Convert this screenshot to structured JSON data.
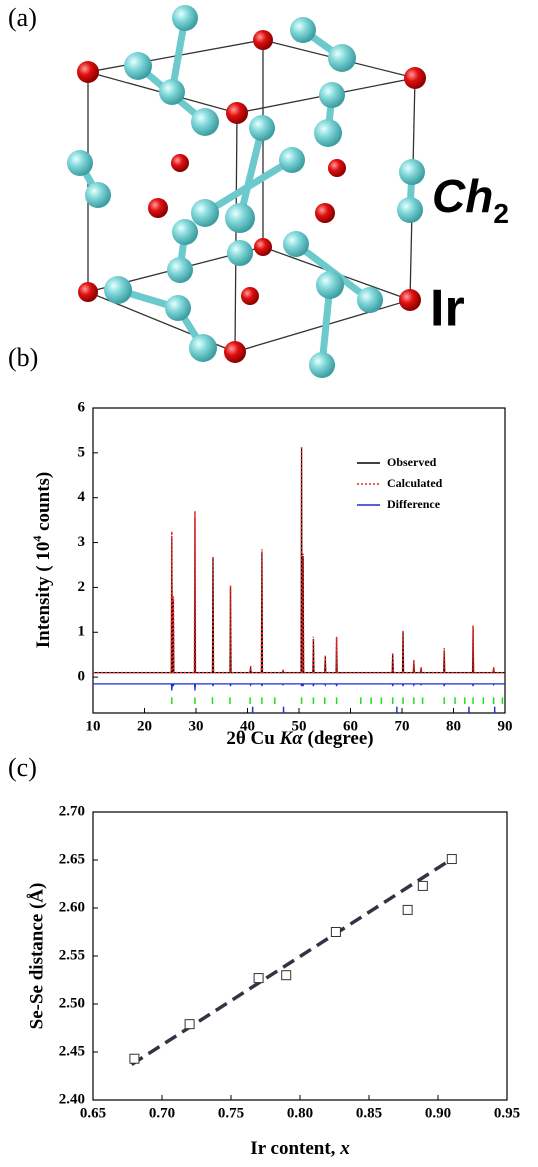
{
  "panel_labels": [
    "(a)",
    "(b)",
    "(c)"
  ],
  "structure": {
    "chalcogen_label": "Ch",
    "chalcogen_subscript": "2",
    "iridium_label": "Ir"
  },
  "chart_data": [
    {
      "type": "line",
      "y_label": [
        "Intensity ( 10",
        "4",
        " counts)"
      ],
      "x_label": [
        "2θ Cu ",
        "Kα",
        " (degree)"
      ],
      "xlim": [
        10,
        90
      ],
      "xticks": [
        10,
        20,
        30,
        40,
        50,
        60,
        70,
        80,
        90
      ],
      "ylim": [
        -0.8,
        6
      ],
      "yticks": [
        0,
        1,
        2,
        3,
        4,
        5,
        6
      ],
      "legend": "upper right",
      "x": [
        10,
        25.2,
        25.3,
        25.4,
        25.5,
        25.6,
        25.7,
        29.7,
        29.8,
        29.9,
        33.2,
        33.3,
        33.4,
        36.6,
        36.7,
        36.8,
        40.5,
        40.6,
        40.7,
        42.7,
        42.8,
        42.9,
        46.8,
        46.9,
        47.0,
        50.4,
        50.5,
        50.6,
        50.7,
        50.8,
        50.9,
        52.7,
        52.8,
        52.9,
        55.0,
        55.1,
        55.2,
        57.2,
        57.3,
        57.4,
        68.1,
        68.2,
        68.3,
        70.1,
        70.2,
        70.3,
        72.2,
        72.3,
        72.4,
        73.6,
        73.7,
        73.8,
        78.1,
        78.2,
        78.3,
        83.7,
        83.8,
        83.9,
        87.7,
        87.8,
        87.9,
        90
      ],
      "series": [
        {
          "name": "Observed",
          "color": "#000000",
          "values": [
            0.1,
            0.1,
            3.1,
            0.1,
            0.1,
            1.75,
            0.1,
            0.1,
            3.55,
            0.1,
            0.1,
            2.65,
            0.1,
            0.1,
            2.0,
            0.1,
            0.1,
            0.22,
            0.1,
            0.1,
            2.8,
            0.1,
            0.1,
            0.15,
            0.1,
            0.1,
            5.1,
            0.1,
            0.1,
            2.7,
            0.1,
            0.1,
            0.85,
            0.1,
            0.1,
            0.45,
            0.1,
            0.1,
            0.85,
            0.1,
            0.1,
            0.5,
            0.1,
            0.1,
            1.0,
            0.1,
            0.1,
            0.35,
            0.1,
            0.1,
            0.2,
            0.1,
            0.1,
            0.6,
            0.1,
            0.1,
            1.1,
            0.1,
            0.1,
            0.2,
            0.1,
            0.1
          ]
        },
        {
          "name": "Calculated",
          "color": "#e8231f",
          "values": [
            0.1,
            0.1,
            3.25,
            0.1,
            0.1,
            1.8,
            0.1,
            0.1,
            3.7,
            0.1,
            0.1,
            2.7,
            0.1,
            0.1,
            2.05,
            0.1,
            0.1,
            0.25,
            0.1,
            0.1,
            2.85,
            0.1,
            0.1,
            0.17,
            0.1,
            0.1,
            5.15,
            0.1,
            0.1,
            2.75,
            0.1,
            0.1,
            0.9,
            0.1,
            0.1,
            0.48,
            0.1,
            0.1,
            0.9,
            0.1,
            0.1,
            0.55,
            0.1,
            0.1,
            1.05,
            0.1,
            0.1,
            0.38,
            0.1,
            0.1,
            0.22,
            0.1,
            0.1,
            0.65,
            0.1,
            0.1,
            1.15,
            0.1,
            0.1,
            0.22,
            0.1,
            0.1
          ]
        },
        {
          "name": "Difference",
          "color": "#1f2fd6",
          "values": [
            -0.15,
            -0.15,
            -0.3,
            -0.15,
            -0.15,
            -0.2,
            -0.15,
            -0.15,
            -0.3,
            -0.15,
            -0.15,
            -0.2,
            -0.15,
            -0.15,
            -0.2,
            -0.15,
            -0.15,
            -0.18,
            -0.15,
            -0.15,
            -0.2,
            -0.15,
            -0.15,
            -0.17,
            -0.15,
            -0.15,
            -0.2,
            -0.15,
            -0.15,
            -0.2,
            -0.15,
            -0.15,
            -0.2,
            -0.15,
            -0.15,
            -0.18,
            -0.15,
            -0.15,
            -0.2,
            -0.15,
            -0.15,
            -0.2,
            -0.15,
            -0.15,
            -0.2,
            -0.15,
            -0.15,
            -0.18,
            -0.15,
            -0.15,
            -0.17,
            -0.15,
            -0.15,
            -0.2,
            -0.15,
            -0.15,
            -0.2,
            -0.15,
            -0.15,
            -0.17,
            -0.15,
            -0.15
          ]
        }
      ],
      "reflections": [
        {
          "color": "#22dd22",
          "x": [
            25.3,
            29.8,
            33.2,
            36.6,
            40.5,
            42.8,
            45.3,
            50.5,
            52.8,
            55.0,
            57.3,
            62.0,
            64.0,
            66.0,
            68.2,
            70.2,
            72.3,
            74.0,
            78.2,
            80.3,
            82.2,
            83.8,
            85.8,
            87.8,
            89.5
          ]
        },
        {
          "color": "#1f2fd6",
          "x": [
            41.0,
            47.0,
            69.0,
            83.0,
            88.0
          ]
        }
      ]
    },
    {
      "type": "scatter",
      "y_label": "Se-Se distance (Å)",
      "x_label": [
        "Ir content, ",
        "x"
      ],
      "xlim": [
        0.65,
        0.95
      ],
      "xticks": [
        0.65,
        {
          "value": 0.7,
          "label": "0.70"
        },
        0.75,
        {
          "value": 0.8,
          "label": "0.80"
        },
        0.85,
        {
          "value": 0.9,
          "label": "0.90"
        },
        0.95
      ],
      "ylim": [
        2.4,
        2.7
      ],
      "yticks": [
        {
          "value": 2.4,
          "label": "2.40"
        },
        2.45,
        {
          "value": 2.5,
          "label": "2.50"
        },
        2.55,
        {
          "value": 2.6,
          "label": "2.60"
        },
        2.65,
        {
          "value": 2.7,
          "label": "2.70"
        }
      ],
      "x": [
        0.68,
        0.72,
        0.77,
        0.79,
        0.826,
        0.878,
        0.889,
        0.91
      ],
      "values": [
        2.443,
        2.479,
        2.527,
        2.53,
        2.575,
        2.598,
        2.623,
        2.651
      ],
      "color": "#333333",
      "fit_line": {
        "x": [
          0.678,
          0.91
        ],
        "values": [
          2.437,
          2.651
        ],
        "color": "#333344"
      }
    }
  ]
}
